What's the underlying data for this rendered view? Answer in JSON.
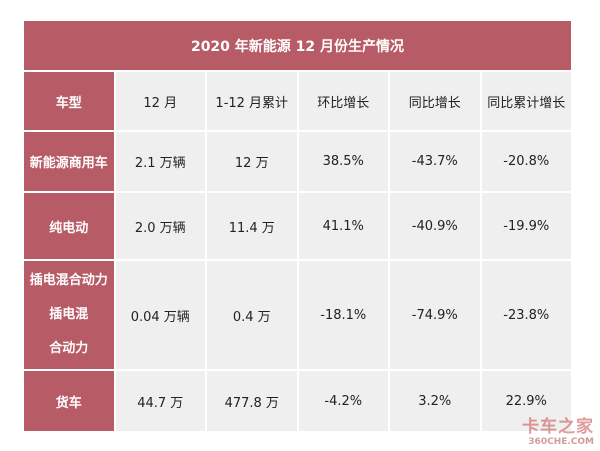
{
  "title": "2020 年新能源 12 月份生产情况",
  "columns": [
    "车型",
    "12 月",
    "1-12 月累计",
    "环比增长",
    "同比增长",
    "同比累计增长"
  ],
  "rows": [
    {
      "label": "新能源商用车",
      "cells": [
        "2.1 万辆",
        "12 万",
        "38.5%",
        "-43.7%",
        "-20.8%"
      ]
    },
    {
      "label": "纯电动",
      "cells": [
        "2.0 万辆",
        "11.4 万",
        "41.1%",
        "-40.9%",
        "-19.9%"
      ]
    },
    {
      "label_line1": "插电混合动力插电混",
      "label_line2": "合动力",
      "cells": [
        "0.04 万辆",
        "0.4 万",
        "-18.1%",
        "-74.9%",
        "-23.8%"
      ]
    },
    {
      "label": "货车",
      "cells": [
        "44.7 万",
        "477.8 万",
        "-4.2%",
        "3.2%",
        "22.9%"
      ]
    }
  ],
  "watermark": {
    "cn": "卡车之家",
    "en": "360CHE.COM"
  },
  "colors": {
    "accent": "#b75b66",
    "cell_bg": "#efefef"
  }
}
